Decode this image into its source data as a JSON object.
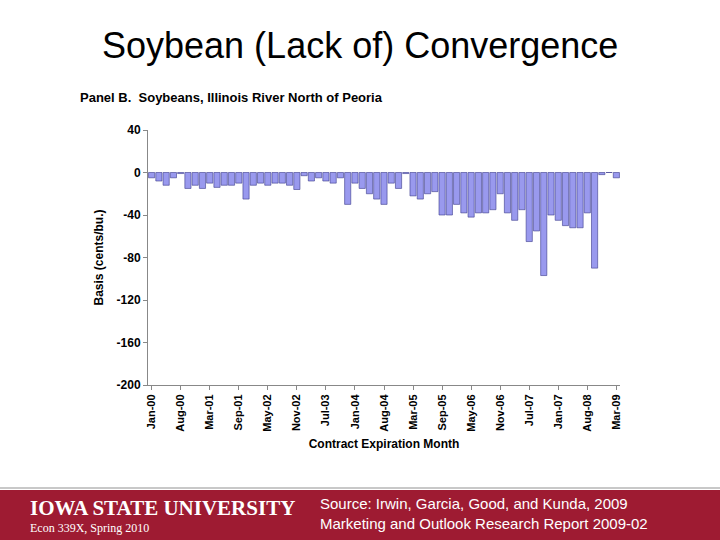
{
  "slide": {
    "title": "Soybean (Lack of) Convergence",
    "footer": {
      "university": "IOWA STATE UNIVERSITY",
      "course": "Econ 339X, Spring 2010",
      "source": [
        "Source: Irwin, Garcia, Good, and Kunda, 2009",
        "Marketing and Outlook Research Report 2009-02"
      ]
    }
  },
  "chart_data": {
    "type": "bar",
    "title": "Panel B.  Soybeans, Illinois River North of Peoria",
    "x_label": "Contract Expiration Month",
    "y_label": "Basis (cents/bu.)",
    "categories": [
      "Jan-00",
      null,
      null,
      null,
      "Aug-00",
      null,
      null,
      null,
      "Mar-01",
      null,
      null,
      null,
      "Sep-01",
      null,
      null,
      null,
      "May-02",
      null,
      null,
      null,
      "Nov-02",
      null,
      null,
      null,
      "Jul-03",
      null,
      null,
      null,
      "Jan-04",
      null,
      null,
      null,
      "Aug-04",
      null,
      null,
      null,
      "Mar-05",
      null,
      null,
      null,
      "Sep-05",
      null,
      null,
      null,
      "May-06",
      null,
      null,
      null,
      "Nov-06",
      null,
      null,
      null,
      "Jul-07",
      null,
      null,
      null,
      "Jan-07",
      null,
      null,
      null,
      "Aug-08",
      null,
      null,
      null,
      "Mar-09"
    ],
    "values": [
      -5,
      -8,
      -12,
      -5,
      -1,
      -15,
      -12,
      -15,
      -10,
      -14,
      -12,
      -12,
      -10,
      -25,
      -12,
      -10,
      -12,
      -10,
      -10,
      -12,
      -16,
      -3,
      -8,
      -5,
      -8,
      -10,
      -5,
      -30,
      -10,
      -15,
      -20,
      -25,
      -30,
      -10,
      -15,
      -1,
      -22,
      -25,
      -20,
      -18,
      -40,
      -40,
      -30,
      -38,
      -42,
      -38,
      -38,
      -35,
      -20,
      -38,
      -45,
      -35,
      -65,
      -55,
      -97,
      -40,
      -45,
      -50,
      -52,
      -52,
      -38,
      -90,
      -2,
      0,
      -5
    ],
    "color": "#9999ee",
    "ylim": [
      -200,
      40
    ],
    "yticks": [
      40,
      0,
      -40,
      -80,
      -120,
      -160,
      -200
    ],
    "grid": false
  }
}
